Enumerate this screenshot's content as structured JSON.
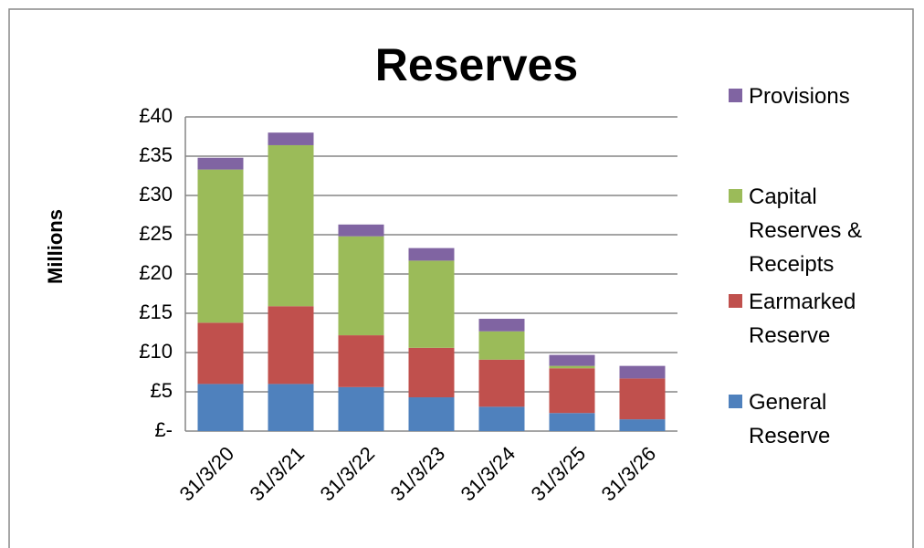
{
  "chart_data": {
    "type": "stacked_bar",
    "title": "Reserves",
    "y_label": "Millions",
    "categories": [
      "31/3/20",
      "31/3/21",
      "31/3/22",
      "31/3/23",
      "31/3/24",
      "31/3/25",
      "31/3/26"
    ],
    "series": [
      {
        "name": "General Reserve",
        "color": "#4f81bd",
        "values": [
          6.0,
          6.0,
          5.6,
          4.3,
          3.1,
          2.3,
          1.5
        ]
      },
      {
        "name": "Earmarked Reserve",
        "color": "#c0504d",
        "values": [
          7.8,
          9.9,
          6.6,
          6.3,
          6.0,
          5.7,
          5.2
        ]
      },
      {
        "name": "Capital Reserves & Receipts",
        "color": "#9bbb59",
        "values": [
          19.5,
          20.5,
          12.6,
          11.1,
          3.6,
          0.3,
          0
        ]
      },
      {
        "name": "Provisions",
        "color": "#8064a2",
        "values": [
          1.5,
          1.6,
          1.5,
          1.6,
          1.6,
          1.4,
          1.6
        ]
      }
    ],
    "ylim": [
      0,
      40
    ],
    "yticks": [
      {
        "value": 0,
        "label": "£-"
      },
      {
        "value": 5,
        "label": "£5"
      },
      {
        "value": 10,
        "label": "£10"
      },
      {
        "value": 15,
        "label": "£15"
      },
      {
        "value": 20,
        "label": "£20"
      },
      {
        "value": 25,
        "label": "£25"
      },
      {
        "value": 30,
        "label": "£30"
      },
      {
        "value": 35,
        "label": "£35"
      },
      {
        "value": 40,
        "label": "£40"
      }
    ],
    "grid": true,
    "legend": "right"
  }
}
